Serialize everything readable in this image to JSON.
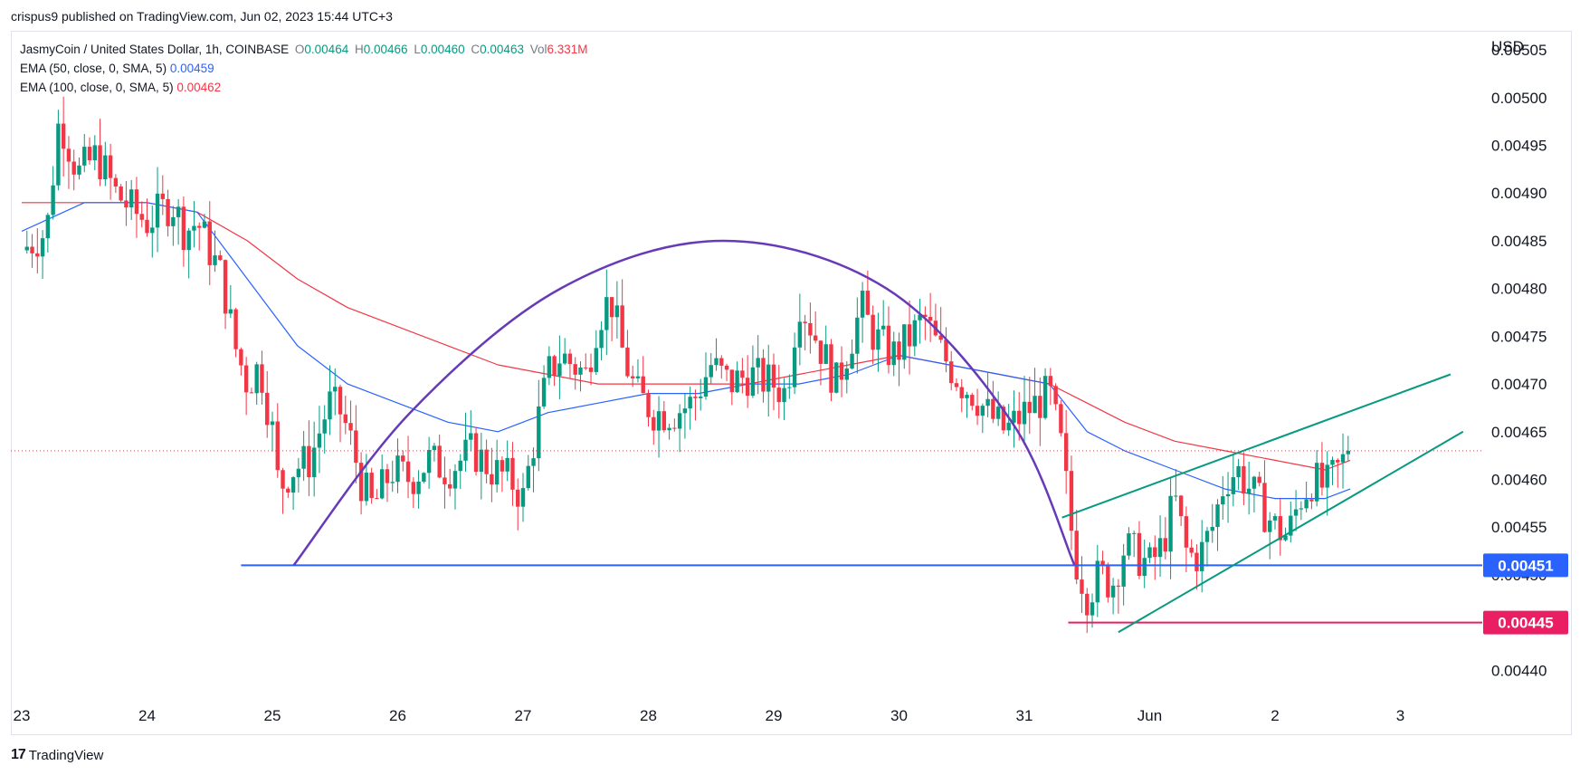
{
  "header": {
    "published": "crispus9 published on TradingView.com, Jun 02, 2023 15:44 UTC+3"
  },
  "legend": {
    "symbol": "JasmyCoin / United States Dollar, 1h, COINBASE",
    "o_label": "O",
    "o_value": "0.00464",
    "h_label": "H",
    "h_value": "0.00466",
    "l_label": "L",
    "l_value": "0.00460",
    "c_label": "C",
    "c_value": "0.00463",
    "vol_label": "Vol",
    "vol_value": "6.331M",
    "ema50_label": "EMA (50, close, 0, SMA, 5)",
    "ema50_value": "0.00459",
    "ema100_label": "EMA (100, close, 0, SMA, 5)",
    "ema100_value": "0.00462"
  },
  "footer": {
    "brand": "TradingView"
  },
  "colors": {
    "up": "#089981",
    "down": "#f23645",
    "ema50": "#2962ff",
    "ema100": "#f23645",
    "support": "#2962ff",
    "low": "#e91e63",
    "channel": "#089981",
    "arc": "#673ab7"
  },
  "chart_data": {
    "type": "candlestick",
    "yaxis_title": "USD",
    "ylim": [
      0.00437,
      0.00507
    ],
    "y_ticks": [
      "0.00440",
      "0.00445",
      "0.00450",
      "0.00455",
      "0.00460",
      "0.00465",
      "0.00470",
      "0.00475",
      "0.00480",
      "0.00485",
      "0.00490",
      "0.00495",
      "0.00500",
      "0.00505"
    ],
    "x_ticks": [
      {
        "label": "23",
        "day": 0
      },
      {
        "label": "24",
        "day": 1
      },
      {
        "label": "25",
        "day": 2
      },
      {
        "label": "26",
        "day": 3
      },
      {
        "label": "27",
        "day": 4
      },
      {
        "label": "28",
        "day": 5
      },
      {
        "label": "29",
        "day": 6
      },
      {
        "label": "30",
        "day": 7
      },
      {
        "label": "31",
        "day": 8
      },
      {
        "label": "Jun",
        "day": 9
      },
      {
        "label": "2",
        "day": 10
      },
      {
        "label": "3",
        "day": 11
      }
    ],
    "xlim_days": [
      0,
      11.75
    ],
    "current_price": 0.00463,
    "support_level": {
      "value": 0.00451,
      "label": "0.00451",
      "from_day": 1.75
    },
    "low_level": {
      "value": 0.00445,
      "label": "0.00445",
      "from_day": 8.35
    },
    "close_path": [
      [
        0,
        0.00484
      ],
      [
        0.2,
        0.00486
      ],
      [
        0.3,
        0.00498
      ],
      [
        0.45,
        0.00492
      ],
      [
        0.6,
        0.00494
      ],
      [
        0.75,
        0.0049
      ],
      [
        0.9,
        0.00488
      ],
      [
        1.0,
        0.00487
      ],
      [
        1.1,
        0.00488
      ],
      [
        1.2,
        0.00489
      ],
      [
        1.3,
        0.00486
      ],
      [
        1.4,
        0.00487
      ],
      [
        1.5,
        0.00484
      ],
      [
        1.6,
        0.00481
      ],
      [
        1.7,
        0.00474
      ],
      [
        1.8,
        0.0047
      ],
      [
        1.9,
        0.00472
      ],
      [
        2.0,
        0.00465
      ],
      [
        2.05,
        0.00459
      ],
      [
        2.15,
        0.00461
      ],
      [
        2.3,
        0.00462
      ],
      [
        2.45,
        0.00468
      ],
      [
        2.55,
        0.00467
      ],
      [
        2.65,
        0.00463
      ],
      [
        2.7,
        0.0046
      ],
      [
        2.8,
        0.00457
      ],
      [
        2.95,
        0.00461
      ],
      [
        3.1,
        0.0046
      ],
      [
        3.25,
        0.00462
      ],
      [
        3.4,
        0.00461
      ],
      [
        3.6,
        0.00463
      ],
      [
        3.75,
        0.00461
      ],
      [
        3.9,
        0.0046
      ],
      [
        4.0,
        0.00458
      ],
      [
        4.1,
        0.00465
      ],
      [
        4.2,
        0.00471
      ],
      [
        4.3,
        0.00473
      ],
      [
        4.4,
        0.00472
      ],
      [
        4.5,
        0.00471
      ],
      [
        4.6,
        0.00477
      ],
      [
        4.7,
        0.00479
      ],
      [
        4.8,
        0.00473
      ],
      [
        4.9,
        0.00469
      ],
      [
        5.05,
        0.00467
      ],
      [
        5.2,
        0.00467
      ],
      [
        5.35,
        0.00468
      ],
      [
        5.5,
        0.00472
      ],
      [
        5.65,
        0.0047
      ],
      [
        5.8,
        0.00471
      ],
      [
        6.0,
        0.0047
      ],
      [
        6.1,
        0.00469
      ],
      [
        6.2,
        0.00479
      ],
      [
        6.3,
        0.00476
      ],
      [
        6.4,
        0.00473
      ],
      [
        6.5,
        0.0047
      ],
      [
        6.6,
        0.00474
      ],
      [
        6.7,
        0.00478
      ],
      [
        6.8,
        0.00475
      ],
      [
        6.95,
        0.00473
      ],
      [
        7.1,
        0.00475
      ],
      [
        7.2,
        0.00477
      ],
      [
        7.3,
        0.00474
      ],
      [
        7.4,
        0.00472
      ],
      [
        7.5,
        0.0047
      ],
      [
        7.6,
        0.00469
      ],
      [
        7.7,
        0.00467
      ],
      [
        7.85,
        0.00465
      ],
      [
        8.0,
        0.00467
      ],
      [
        8.1,
        0.00468
      ],
      [
        8.2,
        0.00469
      ],
      [
        8.3,
        0.00463
      ],
      [
        8.4,
        0.00452
      ],
      [
        8.5,
        0.00448
      ],
      [
        8.6,
        0.0045
      ],
      [
        8.7,
        0.00449
      ],
      [
        8.8,
        0.00453
      ],
      [
        8.9,
        0.00452
      ],
      [
        9.0,
        0.00451
      ],
      [
        9.1,
        0.00453
      ],
      [
        9.2,
        0.00458
      ],
      [
        9.3,
        0.00452
      ],
      [
        9.4,
        0.00452
      ],
      [
        9.5,
        0.00455
      ],
      [
        9.6,
        0.0046
      ],
      [
        9.7,
        0.00461
      ],
      [
        9.8,
        0.00459
      ],
      [
        9.9,
        0.00457
      ],
      [
        10.0,
        0.00455
      ],
      [
        10.1,
        0.00454
      ],
      [
        10.2,
        0.00458
      ],
      [
        10.3,
        0.0046
      ],
      [
        10.4,
        0.00459
      ],
      [
        10.5,
        0.00461
      ],
      [
        10.6,
        0.00463
      ]
    ],
    "annotations": {
      "ema50": [
        [
          0,
          0.00486
        ],
        [
          0.5,
          0.00489
        ],
        [
          1.0,
          0.00489
        ],
        [
          1.4,
          0.00488
        ],
        [
          1.8,
          0.00481
        ],
        [
          2.2,
          0.00474
        ],
        [
          2.6,
          0.0047
        ],
        [
          3.0,
          0.00468
        ],
        [
          3.4,
          0.00466
        ],
        [
          3.8,
          0.00465
        ],
        [
          4.2,
          0.00467
        ],
        [
          4.6,
          0.00468
        ],
        [
          5.0,
          0.00469
        ],
        [
          5.4,
          0.00469
        ],
        [
          5.8,
          0.0047
        ],
        [
          6.2,
          0.0047
        ],
        [
          6.6,
          0.00471
        ],
        [
          7.0,
          0.00473
        ],
        [
          7.4,
          0.00472
        ],
        [
          7.8,
          0.00471
        ],
        [
          8.2,
          0.0047
        ],
        [
          8.5,
          0.00465
        ],
        [
          8.8,
          0.00463
        ],
        [
          9.2,
          0.00461
        ],
        [
          9.6,
          0.00459
        ],
        [
          10.0,
          0.00458
        ],
        [
          10.4,
          0.00458
        ],
        [
          10.6,
          0.00459
        ]
      ],
      "ema100": [
        [
          0,
          0.00489
        ],
        [
          0.5,
          0.00489
        ],
        [
          1.0,
          0.00489
        ],
        [
          1.4,
          0.00488
        ],
        [
          1.8,
          0.00485
        ],
        [
          2.2,
          0.00481
        ],
        [
          2.6,
          0.00478
        ],
        [
          3.0,
          0.00476
        ],
        [
          3.4,
          0.00474
        ],
        [
          3.8,
          0.00472
        ],
        [
          4.2,
          0.00471
        ],
        [
          4.6,
          0.0047
        ],
        [
          5.0,
          0.0047
        ],
        [
          5.4,
          0.0047
        ],
        [
          5.8,
          0.0047
        ],
        [
          6.2,
          0.00471
        ],
        [
          6.6,
          0.00472
        ],
        [
          7.0,
          0.00473
        ],
        [
          7.4,
          0.00472
        ],
        [
          7.8,
          0.00471
        ],
        [
          8.2,
          0.0047
        ],
        [
          8.5,
          0.00468
        ],
        [
          8.8,
          0.00466
        ],
        [
          9.2,
          0.00464
        ],
        [
          9.6,
          0.00463
        ],
        [
          10.0,
          0.00462
        ],
        [
          10.4,
          0.00461
        ],
        [
          10.6,
          0.00462
        ]
      ],
      "arc": [
        [
          2.17,
          0.00451
        ],
        [
          3.1,
          0.00467
        ],
        [
          4.3,
          0.0048
        ],
        [
          5.6,
          0.00485
        ],
        [
          6.9,
          0.0048
        ],
        [
          7.9,
          0.00466
        ],
        [
          8.4,
          0.00451
        ]
      ],
      "channel_upper": [
        [
          8.3,
          0.00456
        ],
        [
          11.4,
          0.00471
        ]
      ],
      "channel_lower": [
        [
          8.75,
          0.00444
        ],
        [
          11.5,
          0.00465
        ]
      ]
    }
  }
}
